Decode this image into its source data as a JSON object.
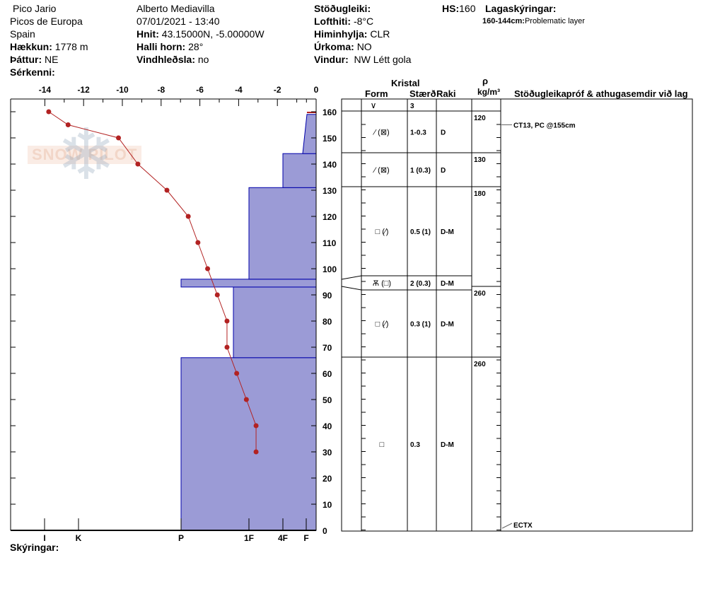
{
  "header": {
    "location": "Pico Jario",
    "range": "Picos de Europa",
    "country": "Spain",
    "elevation_label": "Hækkun:",
    "elevation": "1778 m",
    "aspect_label": "Þáttur:",
    "aspect": "NE",
    "features_label": "Sérkenni:",
    "observer": "Alberto Mediavilla",
    "datetime": "07/01/2021 - 13:40",
    "coords_label": "Hnit:",
    "coords": "43.15000N, -5.00000W",
    "slope_label": "Halli horn:",
    "slope": "28°",
    "wind_loading_label": "Vindhleðsla:",
    "wind_loading": "no",
    "stability_label": "Stöðugleiki:",
    "air_temp_label": "Lofthiti:",
    "air_temp": "-8°C",
    "sky_label": "Himinhylja:",
    "sky": "CLR",
    "precip_label": "Úrkoma:",
    "precip": "NO",
    "wind_label": "Vindur:",
    "wind": "NW Létt gola",
    "hs_label": "HS:",
    "hs": "160",
    "layer_notes_label": "Lagaskýringar:",
    "layer_note_range": "160-144cm:",
    "layer_note_text": "Problematic layer",
    "footer_label": "Skýringar:",
    "logo_text": "SNOW PILOT"
  },
  "colors": {
    "hardness_fill": "#9b9bd6",
    "hardness_stroke": "#0000aa",
    "temp_line": "#b22222"
  },
  "chart_data": {
    "type": "line",
    "temperature": {
      "axis_ticks": [
        "-14",
        "-12",
        "-10",
        "-8",
        "-6",
        "-4",
        "-2",
        "0"
      ],
      "xlim": [
        -14,
        0
      ],
      "points": [
        [
          -13.8,
          160
        ],
        [
          -12.8,
          155
        ],
        [
          -10.2,
          150
        ],
        [
          -9.2,
          140
        ],
        [
          -7.7,
          130
        ],
        [
          -6.6,
          120
        ],
        [
          -6.1,
          110
        ],
        [
          -5.6,
          100
        ],
        [
          -5.1,
          90
        ],
        [
          -4.6,
          80
        ],
        [
          -4.6,
          70
        ],
        [
          -4.1,
          60
        ],
        [
          -3.6,
          50
        ],
        [
          -3.1,
          40
        ],
        [
          -3.1,
          30
        ]
      ]
    },
    "depth": {
      "ylim": [
        0,
        160
      ],
      "ticks": [
        "0",
        "10",
        "20",
        "30",
        "40",
        "50",
        "60",
        "70",
        "80",
        "90",
        "100",
        "110",
        "120",
        "130",
        "140",
        "150",
        "160"
      ]
    },
    "hardness": {
      "ticks": [
        "I",
        "K",
        "P",
        "1F",
        "4F",
        "F"
      ],
      "layers": [
        {
          "bottom": 0,
          "top": 66,
          "hardness": "P"
        },
        {
          "bottom": 66,
          "top": 93,
          "hardness": "P-1F"
        },
        {
          "bottom": 93,
          "top": 96,
          "hardness": "P"
        },
        {
          "bottom": 96,
          "top": 131,
          "hardness": "1F"
        },
        {
          "bottom": 131,
          "top": 144,
          "hardness": "4F"
        },
        {
          "bottom": 144,
          "top": 160,
          "hardness": "F"
        }
      ]
    }
  },
  "table": {
    "kristal": "Kristal",
    "form": "Form",
    "size": "Stærð",
    "moisture": "Raki",
    "rho": "ρ",
    "density_unit": "kg/m³",
    "comments": "Stöðugleikapróf & athugasemdir við lag",
    "surface": {
      "form": "∨",
      "size": "3"
    },
    "rows": [
      {
        "form": "⁄ (⊠)",
        "size": "1-0.3",
        "moisture": "D"
      },
      {
        "form": "⁄ (⊠)",
        "size": "1 (0.3)",
        "moisture": "D"
      },
      {
        "form": "□ (⁄)",
        "size": "0.5 (1)",
        "moisture": "D-M"
      },
      {
        "form": "Ѫ (□)",
        "size": "2 (0.3)",
        "moisture": "D-M"
      },
      {
        "form": "□ (⁄)",
        "size": "0.3 (1)",
        "moisture": "D-M"
      },
      {
        "form": "□",
        "size": "0.3",
        "moisture": "D-M"
      }
    ],
    "densities": [
      "120",
      "130",
      "180",
      "260",
      "260"
    ],
    "tests": [
      {
        "text": "CT13, PC @155cm",
        "depth": 155
      },
      {
        "text": "ECTX",
        "depth": 0
      }
    ]
  }
}
